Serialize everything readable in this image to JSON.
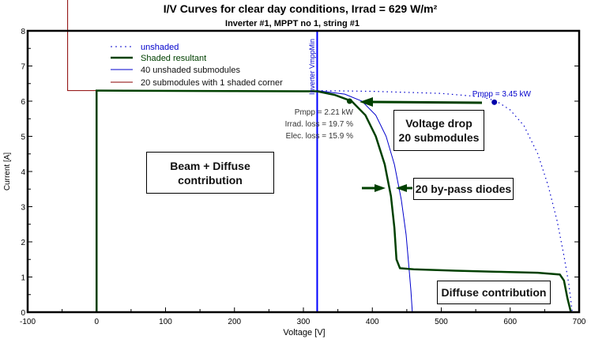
{
  "chart_data": {
    "type": "line",
    "title": "I/V Curves for clear day conditions, Irrad = 629 W/m²",
    "subtitle": "Inverter  #1, MPPT no 1, string #1",
    "xlabel": "Voltage [V]",
    "ylabel": "Current [A]",
    "xlim": [
      -100,
      700
    ],
    "ylim": [
      0,
      8
    ],
    "xticks": [
      "-100",
      "0",
      "100",
      "200",
      "300",
      "400",
      "500",
      "600",
      "700"
    ],
    "yticks": [
      "0",
      "1",
      "2",
      "3",
      "4",
      "5",
      "6",
      "7",
      "8"
    ],
    "legend_position": "top-left",
    "series": [
      {
        "name": "unshaded",
        "color": "#0000cc",
        "style": "dotted",
        "points": [
          [
            320,
            6.3
          ],
          [
            400,
            6.28
          ],
          [
            500,
            6.22
          ],
          [
            560,
            6.12
          ],
          [
            580,
            6.0
          ],
          [
            600,
            5.75
          ],
          [
            620,
            5.3
          ],
          [
            640,
            4.5
          ],
          [
            655,
            3.6
          ],
          [
            668,
            2.6
          ],
          [
            678,
            1.6
          ],
          [
            685,
            0.8
          ],
          [
            690,
            0
          ]
        ]
      },
      {
        "name": "Shaded resultant",
        "color": "#004000",
        "style": "thick",
        "points": [
          [
            0,
            0
          ],
          [
            0,
            6.3
          ],
          [
            320,
            6.28
          ],
          [
            345,
            6.18
          ],
          [
            370,
            6.0
          ],
          [
            390,
            5.6
          ],
          [
            405,
            5.0
          ],
          [
            418,
            4.2
          ],
          [
            427,
            3.3
          ],
          [
            432,
            2.4
          ],
          [
            435,
            1.5
          ],
          [
            440,
            1.25
          ],
          [
            460,
            1.22
          ],
          [
            520,
            1.18
          ],
          [
            580,
            1.15
          ],
          [
            640,
            1.12
          ],
          [
            672,
            1.07
          ],
          [
            678,
            0.9
          ],
          [
            683,
            0.4
          ],
          [
            688,
            0
          ]
        ]
      },
      {
        "name": "40 unshaded submodules",
        "color": "#0000cc",
        "style": "thin",
        "points": [
          [
            320,
            6.3
          ],
          [
            360,
            6.2
          ],
          [
            385,
            6.0
          ],
          [
            405,
            5.6
          ],
          [
            420,
            5.0
          ],
          [
            432,
            4.2
          ],
          [
            442,
            3.2
          ],
          [
            449,
            2.2
          ],
          [
            453,
            1.3
          ],
          [
            456,
            0.6
          ],
          [
            458,
            0
          ]
        ]
      },
      {
        "name": "20 submodules with 1 shaded corner",
        "color": "#8b0000",
        "style": "thin",
        "points": [
          [
            -42,
            9
          ],
          [
            -42,
            6.3
          ],
          [
            0,
            6.3
          ]
        ]
      }
    ],
    "vline": {
      "x": 320,
      "label": "Inverter VmppMin",
      "color": "#0000ff"
    },
    "markers": [
      {
        "x": 577,
        "y": 5.97,
        "label": "Pmpp = 3.45 kW",
        "color": "#0000aa"
      },
      {
        "x": 367,
        "y": 6.0,
        "label": "Pmpp = 2.21 kW",
        "color": "#004000"
      }
    ],
    "annotations": [
      "Irrad. loss = 19.7 %",
      "Elec. loss = 15.9 %"
    ],
    "boxes": {
      "beam": "Beam + Diffuse contribution",
      "voltage": "Voltage drop 20 submodules",
      "diodes": "20 by-pass diodes",
      "diffuse": "Diffuse contribution"
    }
  }
}
